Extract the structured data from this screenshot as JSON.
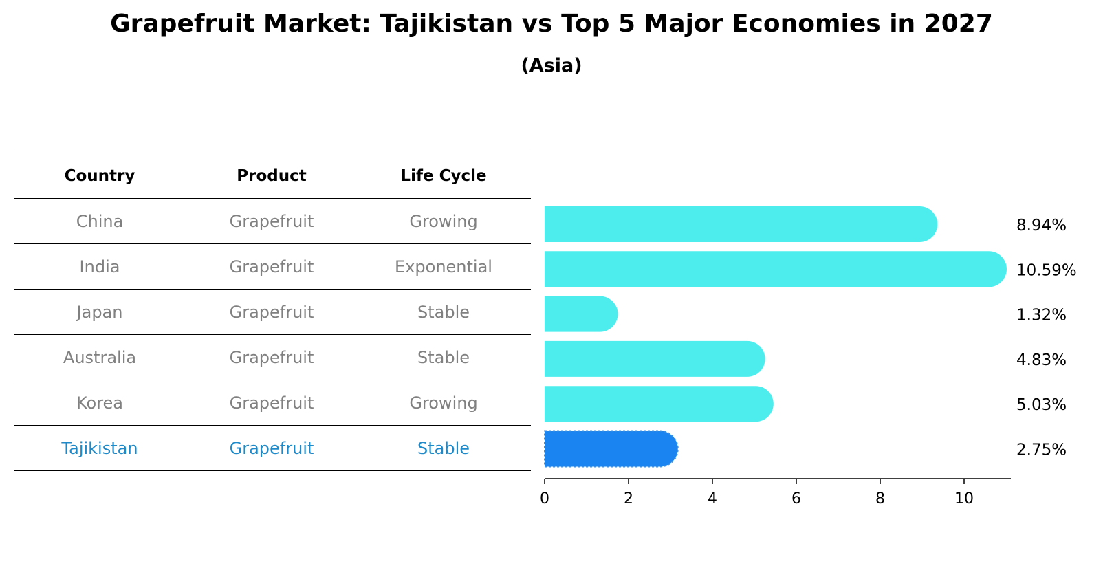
{
  "chart_data": {
    "type": "bar",
    "orientation": "horizontal",
    "title": "Grapefruit Market: Tajikistan vs Top 5 Major Economies in 2027",
    "subtitle": "(Asia)",
    "table": {
      "headers": [
        "Country",
        "Product",
        "Life Cycle"
      ],
      "rows": [
        [
          "China",
          "Grapefruit",
          "Growing"
        ],
        [
          "India",
          "Grapefruit",
          "Exponential"
        ],
        [
          "Japan",
          "Grapefruit",
          "Stable"
        ],
        [
          "Australia",
          "Grapefruit",
          "Stable"
        ],
        [
          "Korea",
          "Grapefruit",
          "Growing"
        ],
        [
          "Tajikistan",
          "Grapefruit",
          "Stable"
        ]
      ],
      "highlight_row": 5
    },
    "categories": [
      "China",
      "India",
      "Japan",
      "Australia",
      "Korea",
      "Tajikistan"
    ],
    "values": [
      8.94,
      10.59,
      1.32,
      4.83,
      5.03,
      2.75
    ],
    "value_labels": [
      "8.94%",
      "10.59%",
      "1.32%",
      "4.83%",
      "5.03%",
      "2.75%"
    ],
    "xlim": [
      0,
      11.1
    ],
    "xticks": [
      0,
      2,
      4,
      6,
      8,
      10
    ],
    "colors": {
      "bar": "#4deded",
      "highlight_bar": "#1a85f0",
      "highlight_text": "#1f8ac9",
      "row_text": "#808080"
    }
  }
}
